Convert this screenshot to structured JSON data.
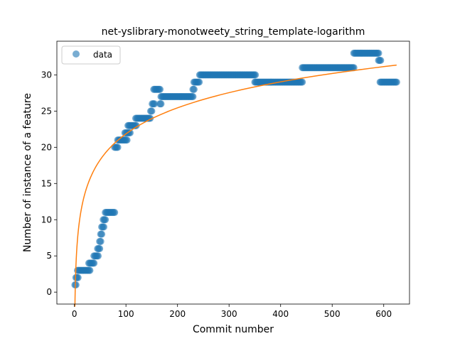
{
  "chart_data": {
    "type": "scatter",
    "title": "net-yslibrary-monotweety_string_template-logarithm",
    "xlabel": "Commit number",
    "ylabel": "Number of instance of a feature",
    "xlim": [
      -34,
      650
    ],
    "ylim": [
      -1.65,
      34.65
    ],
    "xticks": [
      0,
      100,
      200,
      300,
      400,
      500,
      600
    ],
    "yticks": [
      0,
      5,
      10,
      15,
      20,
      25,
      30
    ],
    "grid": false,
    "legend": {
      "placement": "top-left",
      "entries": [
        "data"
      ]
    },
    "colors": {
      "data": "#1f77b4",
      "fit": "#ff7f0e"
    },
    "series": [
      {
        "name": "data",
        "kind": "scatter",
        "segments": [
          {
            "x0": 1,
            "x1": 3,
            "y": 1
          },
          {
            "x0": 3,
            "x1": 7,
            "y": 2
          },
          {
            "x0": 6,
            "x1": 30,
            "y": 3
          },
          {
            "x0": 28,
            "x1": 38,
            "y": 4
          },
          {
            "x0": 38,
            "x1": 46,
            "y": 5
          },
          {
            "x0": 45,
            "x1": 50,
            "y": 6
          },
          {
            "x0": 49,
            "x1": 52,
            "y": 7
          },
          {
            "x0": 51,
            "x1": 54,
            "y": 8
          },
          {
            "x0": 53,
            "x1": 57,
            "y": 9
          },
          {
            "x0": 56,
            "x1": 60,
            "y": 10
          },
          {
            "x0": 60,
            "x1": 78,
            "y": 11
          },
          {
            "x0": 78,
            "x1": 85,
            "y": 20
          },
          {
            "x0": 84,
            "x1": 102,
            "y": 21
          },
          {
            "x0": 98,
            "x1": 108,
            "y": 22
          },
          {
            "x0": 104,
            "x1": 120,
            "y": 23
          },
          {
            "x0": 119,
            "x1": 148,
            "y": 24
          },
          {
            "x0": 148,
            "x1": 150,
            "y": 25
          },
          {
            "x0": 151,
            "x1": 156,
            "y": 26
          },
          {
            "x0": 166,
            "x1": 168,
            "y": 26
          },
          {
            "x0": 154,
            "x1": 167,
            "y": 28
          },
          {
            "x0": 168,
            "x1": 230,
            "y": 27
          },
          {
            "x0": 230,
            "x1": 232,
            "y": 28
          },
          {
            "x0": 232,
            "x1": 243,
            "y": 29
          },
          {
            "x0": 243,
            "x1": 351,
            "y": 30
          },
          {
            "x0": 350,
            "x1": 442,
            "y": 29
          },
          {
            "x0": 442,
            "x1": 542,
            "y": 31
          },
          {
            "x0": 542,
            "x1": 590,
            "y": 33
          },
          {
            "x0": 590,
            "x1": 594,
            "y": 32
          },
          {
            "x0": 593,
            "x1": 625,
            "y": 29
          }
        ]
      },
      {
        "name": "fit",
        "kind": "line",
        "x_range": [
          1,
          625
        ],
        "formula": "y = -2.0 + 5.18 * ln(x)"
      }
    ]
  }
}
